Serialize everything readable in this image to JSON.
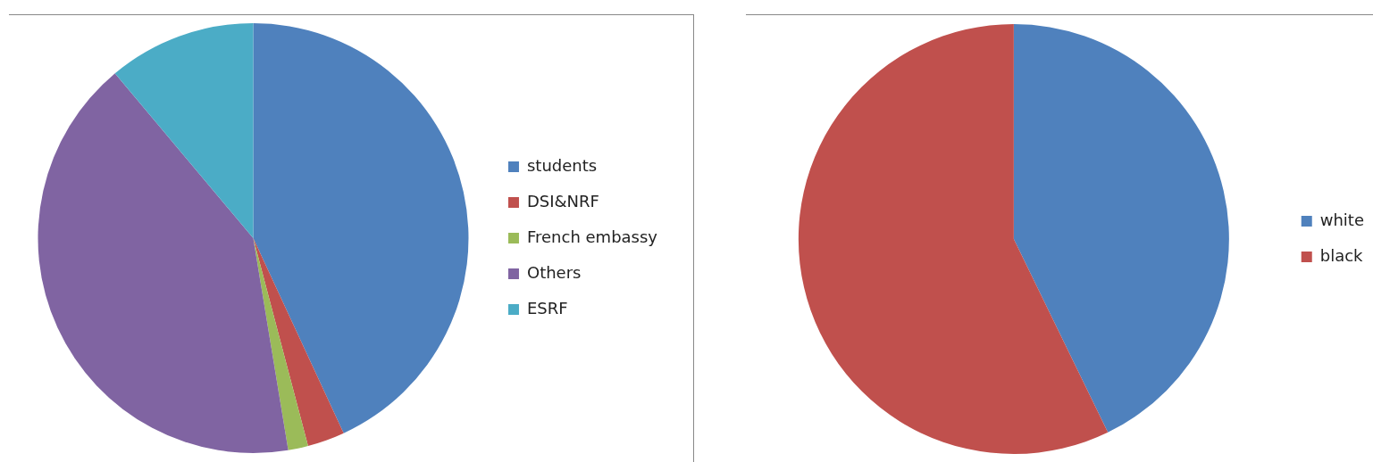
{
  "chart_data": [
    {
      "type": "pie",
      "categories": [
        "students",
        "DSI&NRF",
        "French embassy",
        "Others",
        "ESRF"
      ],
      "values": [
        43.1,
        2.8,
        1.5,
        41.5,
        11.1
      ],
      "colors": [
        "#4f81bd",
        "#c0504d",
        "#9bbb59",
        "#8064a2",
        "#4bacc6"
      ],
      "legend": "right"
    },
    {
      "type": "pie",
      "categories": [
        "white",
        "black"
      ],
      "values": [
        42.8,
        57.2
      ],
      "colors": [
        "#4f81bd",
        "#c0504d"
      ],
      "legend": "right"
    }
  ]
}
